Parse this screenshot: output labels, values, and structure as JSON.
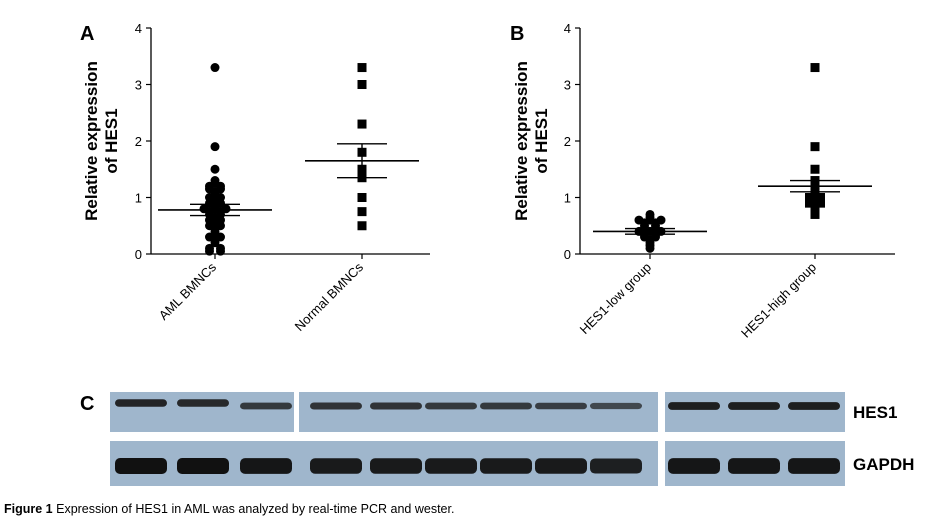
{
  "chart_data": [
    {
      "panel": "A",
      "type": "scatter",
      "ylabel_lines": [
        "Relative expression",
        "of HES1"
      ],
      "ylim": [
        0,
        4
      ],
      "yticks": [
        "0",
        "1",
        "2",
        "3",
        "4"
      ],
      "categories": [
        "AML BMNCs",
        "Normal BMNCs"
      ],
      "groups": [
        {
          "category": "AML BMNCs",
          "marker": "circle",
          "mean": 0.78,
          "sem": 0.1,
          "values": [
            3.3,
            1.9,
            1.5,
            1.3,
            1.25,
            1.2,
            1.2,
            1.15,
            1.15,
            1.1,
            1.05,
            1.0,
            1.0,
            0.95,
            0.9,
            0.9,
            0.85,
            0.8,
            0.8,
            0.8,
            0.75,
            0.75,
            0.7,
            0.7,
            0.65,
            0.6,
            0.6,
            0.55,
            0.5,
            0.5,
            0.45,
            0.4,
            0.35,
            0.3,
            0.3,
            0.25,
            0.2,
            0.1,
            0.1,
            0.05,
            0.05
          ]
        },
        {
          "category": "Normal BMNCs",
          "marker": "square",
          "mean": 1.65,
          "sem": 0.3,
          "values": [
            3.3,
            3.0,
            2.3,
            1.8,
            1.5,
            1.35,
            1.0,
            0.75,
            0.5
          ]
        }
      ]
    },
    {
      "panel": "B",
      "type": "scatter",
      "ylabel_lines": [
        "Relative expression",
        "of HES1"
      ],
      "ylim": [
        0,
        4
      ],
      "yticks": [
        "0",
        "1",
        "2",
        "3",
        "4"
      ],
      "categories": [
        "HES1-low group",
        "HES1-high group"
      ],
      "groups": [
        {
          "category": "HES1-low group",
          "marker": "circle",
          "mean": 0.4,
          "sem": 0.05,
          "values": [
            0.7,
            0.65,
            0.6,
            0.6,
            0.6,
            0.55,
            0.55,
            0.5,
            0.5,
            0.45,
            0.45,
            0.4,
            0.4,
            0.4,
            0.35,
            0.35,
            0.3,
            0.3,
            0.25,
            0.2,
            0.15,
            0.1
          ]
        },
        {
          "category": "HES1-high group",
          "marker": "square",
          "mean": 1.2,
          "sem": 0.1,
          "values": [
            3.3,
            1.9,
            1.5,
            1.3,
            1.25,
            1.2,
            1.15,
            1.1,
            1.0,
            1.0,
            0.95,
            0.9,
            0.9,
            0.85,
            0.8,
            0.75,
            0.7
          ]
        }
      ]
    }
  ],
  "panel_c": {
    "letter": "C",
    "bands": [
      "HES1",
      "GAPDH"
    ],
    "hes1_intensity": [
      0.9,
      0.85,
      0.7,
      0.75,
      0.75,
      0.7,
      0.7,
      0.65,
      0.55,
      0.95,
      0.95,
      0.95
    ],
    "gapdh_intensity": [
      1,
      1,
      0.95,
      0.9,
      0.9,
      0.9,
      0.9,
      0.9,
      0.85,
      0.95,
      0.95,
      0.95
    ]
  },
  "caption": {
    "label": "Figure 1",
    "text": "Expression of HES1 in AML was analyzed by real-time PCR and wester."
  }
}
